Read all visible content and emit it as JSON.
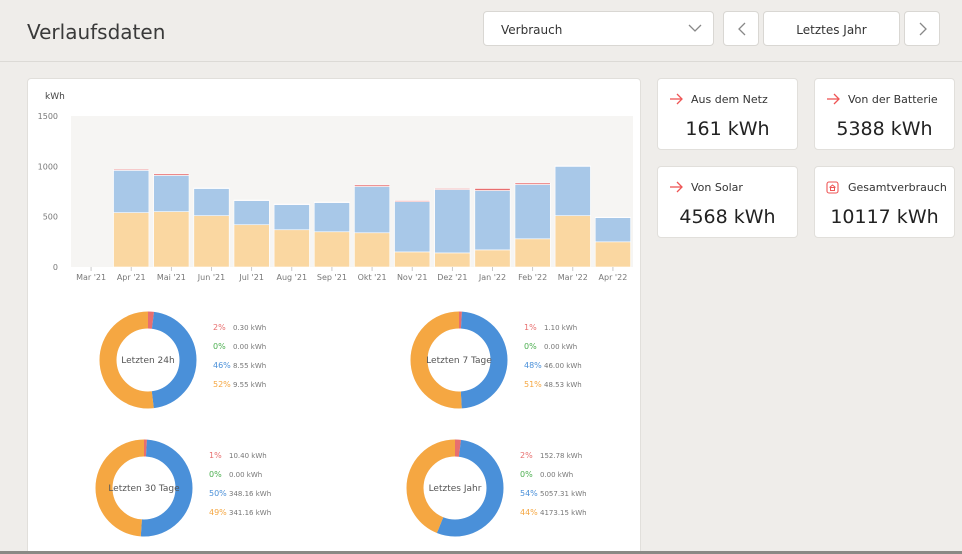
{
  "header": {
    "title": "Verlaufsdaten",
    "select_value": "Verbrauch",
    "period": "Letztes Jahr"
  },
  "stats": [
    {
      "label": "Aus dem Netz",
      "value": "161 kWh",
      "icon": "arrow-right-icon"
    },
    {
      "label": "Von der Batterie",
      "value": "5388 kWh",
      "icon": "arrow-right-icon"
    },
    {
      "label": "Von Solar",
      "value": "4568 kWh",
      "icon": "arrow-right-icon"
    },
    {
      "label": "Gesamtverbrauch",
      "value": "10117 kWh",
      "icon": "house-icon"
    }
  ],
  "colors": {
    "grid": "#e86f6f",
    "battery": "#a8c8e8",
    "solar": "#fad7a1",
    "donut_grid": "#e86f6f",
    "donut_battery": "#4a90d9",
    "donut_solar": "#f5a742",
    "green": "#4caf50"
  },
  "chart_data": {
    "type": "bar",
    "stacked": true,
    "ylabel": "kWh",
    "ylim": [
      0,
      1500
    ],
    "yticks": [
      "1500",
      "1000",
      "500",
      "0"
    ],
    "categories": [
      "Mar '21",
      "Apr '21",
      "Mai '21",
      "Jun '21",
      "Jul '21",
      "Aug '21",
      "Sep '21",
      "Okt '21",
      "Nov '21",
      "Dez '21",
      "Jan '22",
      "Feb '22",
      "Mar '22",
      "Apr '22"
    ],
    "series": [
      {
        "key": "solar",
        "values": [
          0,
          540,
          550,
          510,
          420,
          370,
          350,
          340,
          150,
          140,
          170,
          280,
          510,
          250
        ]
      },
      {
        "key": "battery",
        "values": [
          0,
          420,
          360,
          270,
          240,
          250,
          290,
          460,
          500,
          630,
          590,
          540,
          490,
          240
        ]
      },
      {
        "key": "grid",
        "values": [
          0,
          10,
          15,
          5,
          5,
          5,
          5,
          15,
          10,
          10,
          20,
          15,
          5,
          5
        ]
      }
    ]
  },
  "donuts": [
    {
      "label": "Letzten 24h",
      "rows": [
        {
          "pct": "2%",
          "val": "0.30 kWh",
          "frac": 0.02
        },
        {
          "pct": "0%",
          "val": "0.00 kWh",
          "frac": 0.0
        },
        {
          "pct": "46%",
          "val": "8.55 kWh",
          "frac": 0.46
        },
        {
          "pct": "52%",
          "val": "9.55 kWh",
          "frac": 0.52
        }
      ]
    },
    {
      "label": "Letzten 7 Tage",
      "rows": [
        {
          "pct": "1%",
          "val": "1.10 kWh",
          "frac": 0.01
        },
        {
          "pct": "0%",
          "val": "0.00 kWh",
          "frac": 0.0
        },
        {
          "pct": "48%",
          "val": "46.00 kWh",
          "frac": 0.48
        },
        {
          "pct": "51%",
          "val": "48.53 kWh",
          "frac": 0.51
        }
      ]
    },
    {
      "label": "Letzten 30 Tage",
      "rows": [
        {
          "pct": "1%",
          "val": "10.40 kWh",
          "frac": 0.01
        },
        {
          "pct": "0%",
          "val": "0.00 kWh",
          "frac": 0.0
        },
        {
          "pct": "50%",
          "val": "348.16 kWh",
          "frac": 0.5
        },
        {
          "pct": "49%",
          "val": "341.16 kWh",
          "frac": 0.49
        }
      ]
    },
    {
      "label": "Letztes Jahr",
      "rows": [
        {
          "pct": "2%",
          "val": "152.78 kWh",
          "frac": 0.02
        },
        {
          "pct": "0%",
          "val": "0.00 kWh",
          "frac": 0.0
        },
        {
          "pct": "54%",
          "val": "5057.31 kWh",
          "frac": 0.54
        },
        {
          "pct": "44%",
          "val": "4173.15 kWh",
          "frac": 0.44
        }
      ]
    }
  ]
}
